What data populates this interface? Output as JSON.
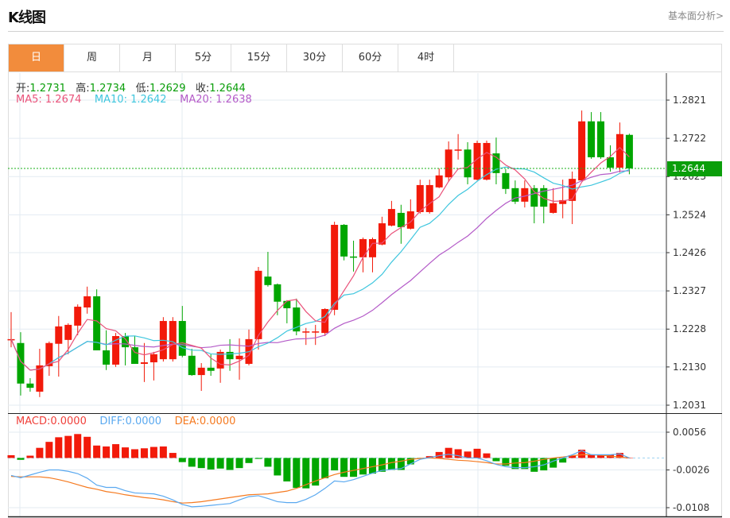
{
  "header": {
    "title": "K线图",
    "link": "基本面分析>"
  },
  "tabs": [
    {
      "label": "日",
      "active": true
    },
    {
      "label": "周"
    },
    {
      "label": "月"
    },
    {
      "label": "5分"
    },
    {
      "label": "15分"
    },
    {
      "label": "30分"
    },
    {
      "label": "60分"
    },
    {
      "label": "4时"
    }
  ],
  "ohlc_info": {
    "open_label": "开:",
    "open": "1.2731",
    "high_label": "高:",
    "high": "1.2734",
    "low_label": "低:",
    "low": "1.2629",
    "close_label": "收:",
    "close": "1.2644"
  },
  "ma_info": {
    "ma5": "MA5: 1.2674",
    "ma10": "MA10: 1.2642",
    "ma20": "MA20: 1.2638"
  },
  "macd_info": {
    "macd_label": "MACD:",
    "macd": "0.0000",
    "diff_label": "DIFF:",
    "diff": "0.0000",
    "dea_label": "DEA:",
    "dea": "0.0000"
  },
  "current_price": "1.2644",
  "colors": {
    "up": "#F21A0A",
    "down": "#00A600",
    "ma5": "#E9527A",
    "ma10": "#3EC6DE",
    "ma20": "#B45BC8",
    "diff": "#5AA9F0",
    "dea": "#F57A20",
    "accent": "#F28C3C"
  },
  "chart_data": {
    "type": "candlestick",
    "price_axis": {
      "ticks": [
        "1.2821",
        "1.2722",
        "1.2623",
        "1.2524",
        "1.2426",
        "1.2327",
        "1.2228",
        "1.2130",
        "1.2031"
      ],
      "range": [
        1.2031,
        1.2821
      ]
    },
    "macd_axis": {
      "ticks": [
        "0.0056",
        "-0.0026",
        "-0.0108"
      ],
      "range": [
        -0.0108,
        0.0056
      ]
    },
    "ohlc": [
      [
        1.22,
        1.2272,
        1.2181,
        1.2202
      ],
      [
        1.2192,
        1.222,
        1.2056,
        1.2087
      ],
      [
        1.2087,
        1.2101,
        1.2066,
        1.2076
      ],
      [
        1.2066,
        1.2177,
        1.2052,
        1.2134
      ],
      [
        1.2132,
        1.2196,
        1.2107,
        1.2192
      ],
      [
        1.219,
        1.2262,
        1.2105,
        1.2235
      ],
      [
        1.22,
        1.2243,
        1.2163,
        1.2239
      ],
      [
        1.2237,
        1.2292,
        1.2212,
        1.2286
      ],
      [
        1.2284,
        1.2338,
        1.2268,
        1.2313
      ],
      [
        1.2313,
        1.2331,
        1.2173,
        1.2173
      ],
      [
        1.2173,
        1.2225,
        1.2122,
        1.2136
      ],
      [
        1.2136,
        1.2218,
        1.213,
        1.221
      ],
      [
        1.221,
        1.2218,
        1.2134,
        1.2181
      ],
      [
        1.2181,
        1.221,
        1.2138,
        1.2138
      ],
      [
        1.2138,
        1.2192,
        1.2091,
        1.2142
      ],
      [
        1.2142,
        1.2169,
        1.2095,
        1.2163
      ],
      [
        1.215,
        1.2259,
        1.2144,
        1.2249
      ],
      [
        1.215,
        1.2259,
        1.2144,
        1.2249
      ],
      [
        1.2249,
        1.2288,
        1.2155,
        1.2159
      ],
      [
        1.2159,
        1.2177,
        1.2107,
        1.2109
      ],
      [
        1.2109,
        1.214,
        1.2068,
        1.2128
      ],
      [
        1.2128,
        1.2163,
        1.2107,
        1.212
      ],
      [
        1.2126,
        1.2175,
        1.2089,
        1.2169
      ],
      [
        1.2169,
        1.2202,
        1.212,
        1.215
      ],
      [
        1.215,
        1.2204,
        1.2097,
        1.2159
      ],
      [
        1.2138,
        1.2227,
        1.2134,
        1.2202
      ],
      [
        1.2202,
        1.2389,
        1.2175,
        1.2379
      ],
      [
        1.2364,
        1.2428,
        1.2338,
        1.2342
      ],
      [
        1.2344,
        1.2346,
        1.2264,
        1.2299
      ],
      [
        1.2301,
        1.2303,
        1.2243,
        1.2282
      ],
      [
        1.2284,
        1.2307,
        1.2212,
        1.2222
      ],
      [
        1.222,
        1.2231,
        1.2187,
        1.2222
      ],
      [
        1.222,
        1.2239,
        1.2187,
        1.2222
      ],
      [
        1.2218,
        1.2282,
        1.221,
        1.228
      ],
      [
        1.2278,
        1.2506,
        1.2264,
        1.2498
      ],
      [
        1.2498,
        1.25,
        1.2406,
        1.2416
      ],
      [
        1.2416,
        1.2457,
        1.2377,
        1.2414
      ],
      [
        1.2414,
        1.2465,
        1.2375,
        1.2461
      ],
      [
        1.2414,
        1.2465,
        1.2375,
        1.2461
      ],
      [
        1.2447,
        1.2519,
        1.2445,
        1.2502
      ],
      [
        1.2496,
        1.256,
        1.2494,
        1.2539
      ],
      [
        1.2529,
        1.255,
        1.2449,
        1.2492
      ],
      [
        1.2488,
        1.2564,
        1.2486,
        1.2533
      ],
      [
        1.2531,
        1.2615,
        1.2527,
        1.2601
      ],
      [
        1.2531,
        1.2615,
        1.2527,
        1.2601
      ],
      [
        1.2595,
        1.2644,
        1.2593,
        1.2626
      ],
      [
        1.2621,
        1.2714,
        1.2609,
        1.2693
      ],
      [
        1.2691,
        1.2733,
        1.2667,
        1.2693
      ],
      [
        1.2693,
        1.2712,
        1.2603,
        1.2621
      ],
      [
        1.2615,
        1.2716,
        1.2613,
        1.271
      ],
      [
        1.2615,
        1.2716,
        1.2613,
        1.271
      ],
      [
        1.2683,
        1.2724,
        1.2603,
        1.2632
      ],
      [
        1.2632,
        1.2642,
        1.2578,
        1.2591
      ],
      [
        1.2593,
        1.2613,
        1.2552,
        1.2558
      ],
      [
        1.2558,
        1.2613,
        1.2543,
        1.2593
      ],
      [
        1.2593,
        1.2601,
        1.2502,
        1.2545
      ],
      [
        1.2593,
        1.2601,
        1.2502,
        1.2545
      ],
      [
        1.2529,
        1.2593,
        1.2527,
        1.2554
      ],
      [
        1.2552,
        1.2615,
        1.2515,
        1.2562
      ],
      [
        1.256,
        1.2636,
        1.25,
        1.2617
      ],
      [
        1.2613,
        1.2794,
        1.2613,
        1.2766
      ],
      [
        1.2766,
        1.279,
        1.2669,
        1.2673
      ],
      [
        1.2766,
        1.279,
        1.2669,
        1.2673
      ],
      [
        1.2673,
        1.2704,
        1.2636,
        1.2646
      ],
      [
        1.2646,
        1.2763,
        1.2634,
        1.2733
      ],
      [
        1.2731,
        1.2734,
        1.2629,
        1.2644
      ]
    ],
    "macd_hist": [
      0.0006,
      -0.0004,
      0.0005,
      0.0022,
      0.0035,
      0.0045,
      0.0048,
      0.0052,
      0.0046,
      0.0027,
      0.0025,
      0.003,
      0.0023,
      0.0019,
      0.0021,
      0.0024,
      0.0025,
      0.0011,
      -0.0009,
      -0.0019,
      -0.0022,
      -0.0025,
      -0.0023,
      -0.0026,
      -0.0022,
      -0.0011,
      -0.0002,
      -0.0019,
      -0.0038,
      -0.0051,
      -0.0065,
      -0.0066,
      -0.006,
      -0.0044,
      -0.0027,
      -0.0041,
      -0.0041,
      -0.0036,
      -0.0034,
      -0.003,
      -0.0026,
      -0.0026,
      -0.0014,
      -0.0002,
      0.0004,
      0.0013,
      0.0022,
      0.0019,
      0.0014,
      0.002,
      0.001,
      -0.0007,
      -0.0017,
      -0.0024,
      -0.0024,
      -0.003,
      -0.0027,
      -0.0021,
      -0.001,
      0.0006,
      0.0018,
      0.0007,
      0.0007,
      0.0007,
      0.0011,
      0.0
    ],
    "diff": [
      -0.0038,
      -0.0043,
      -0.0037,
      -0.0031,
      -0.0026,
      -0.0026,
      -0.0029,
      -0.0034,
      -0.0044,
      -0.0059,
      -0.0064,
      -0.0064,
      -0.0071,
      -0.0076,
      -0.0077,
      -0.0078,
      -0.0083,
      -0.0091,
      -0.0101,
      -0.0106,
      -0.0105,
      -0.0103,
      -0.0101,
      -0.0099,
      -0.0091,
      -0.0084,
      -0.0082,
      -0.0088,
      -0.0095,
      -0.0097,
      -0.0097,
      -0.009,
      -0.008,
      -0.0066,
      -0.005,
      -0.0052,
      -0.0047,
      -0.004,
      -0.0033,
      -0.0027,
      -0.0025,
      -0.0023,
      -0.0013,
      -0.0003,
      0.0001,
      0.0005,
      0.0008,
      0.0005,
      0.0,
      0.0,
      -0.0006,
      -0.0014,
      -0.0019,
      -0.0021,
      -0.0021,
      -0.0019,
      -0.0015,
      -0.0007,
      0.0,
      0.0007,
      0.0016,
      0.0007,
      0.0007,
      0.0007,
      0.0009,
      0.0
    ],
    "dea": [
      -0.004,
      -0.0041,
      -0.0041,
      -0.0041,
      -0.0043,
      -0.0047,
      -0.0052,
      -0.0058,
      -0.0064,
      -0.0068,
      -0.0073,
      -0.0076,
      -0.008,
      -0.0083,
      -0.0086,
      -0.0088,
      -0.0091,
      -0.0095,
      -0.0098,
      -0.0097,
      -0.0095,
      -0.0092,
      -0.0089,
      -0.0086,
      -0.0083,
      -0.008,
      -0.0079,
      -0.0078,
      -0.0075,
      -0.0072,
      -0.0066,
      -0.0058,
      -0.005,
      -0.0043,
      -0.0036,
      -0.0031,
      -0.0027,
      -0.0023,
      -0.0019,
      -0.0015,
      -0.001,
      -0.0007,
      -0.0003,
      -0.0001,
      0.0,
      -0.0001,
      -0.0003,
      -0.0005,
      -0.0006,
      -0.0008,
      -0.001,
      -0.0013,
      -0.0013,
      -0.0011,
      -0.001,
      -0.0007,
      -0.0003,
      0.0,
      0.0002,
      0.0005,
      0.0007,
      0.0007,
      0.0006,
      0.0004,
      0.0002,
      0.0
    ]
  }
}
